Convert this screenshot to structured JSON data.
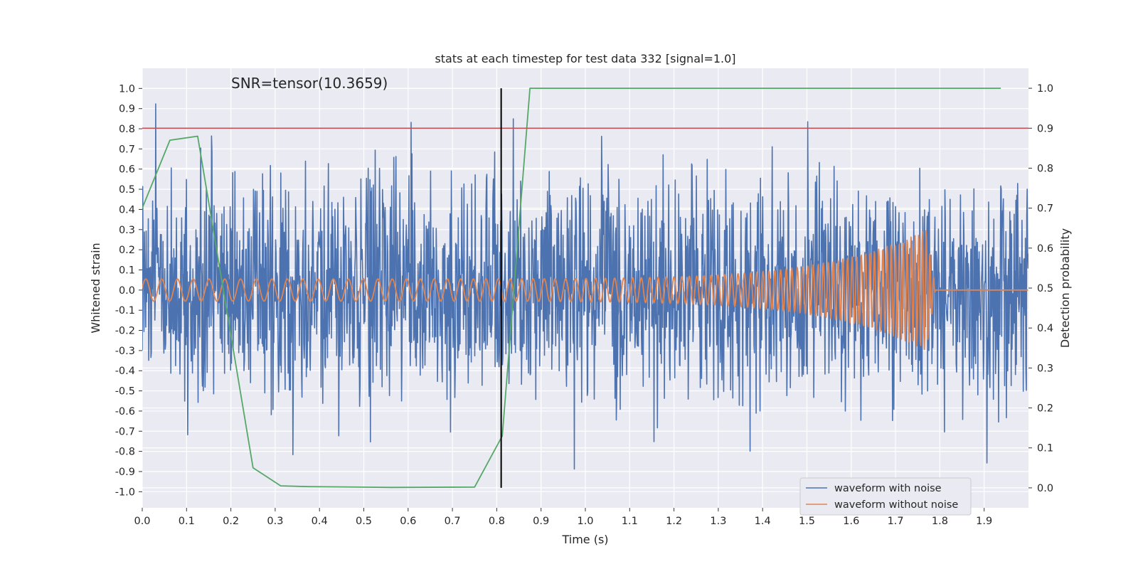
{
  "chart_data": {
    "type": "line",
    "title": "stats at each timestep for test data 332 [signal=1.0]",
    "annotation": "SNR=tensor(10.3659)",
    "xlabel": "Time (s)",
    "ylabel_left": "Whitened strain",
    "ylabel_right": "Detection probability",
    "xlim": [
      0.0,
      2.0
    ],
    "ylim_left": [
      -1.08,
      1.1
    ],
    "ylim_right": [
      -0.05,
      1.05
    ],
    "x_ticks": [
      "0.0",
      "0.1",
      "0.2",
      "0.3",
      "0.4",
      "0.5",
      "0.6",
      "0.7",
      "0.8",
      "0.9",
      "1.0",
      "1.1",
      "1.2",
      "1.3",
      "1.4",
      "1.5",
      "1.6",
      "1.7",
      "1.8",
      "1.9"
    ],
    "y_ticks_left": [
      "1.0",
      "0.9",
      "0.8",
      "0.7",
      "0.6",
      "0.5",
      "0.4",
      "0.3",
      "0.2",
      "0.1",
      "0.0",
      "-0.1",
      "-0.2",
      "-0.3",
      "-0.4",
      "-0.5",
      "-0.6",
      "-0.7",
      "-0.8",
      "-0.9",
      "-1.0"
    ],
    "y_ticks_right": [
      "1.0",
      "0.9",
      "0.8",
      "0.7",
      "0.6",
      "0.5",
      "0.4",
      "0.3",
      "0.2",
      "0.1",
      "0.0"
    ],
    "threshold": {
      "axis": "right",
      "value": 0.9,
      "color": "#c44e52"
    },
    "event_marker": {
      "x": 0.81,
      "y_range_right": [
        0.0,
        1.0
      ],
      "color": "#000000"
    },
    "legend": {
      "position": "lower-right",
      "entries": [
        {
          "label": "waveform with noise",
          "color": "#4c72b0"
        },
        {
          "label": "waveform without noise",
          "color": "#dd8452"
        }
      ]
    },
    "series": [
      {
        "name": "waveform with noise",
        "axis": "left",
        "color": "#4c72b0",
        "kind": "noise",
        "samples": 2048,
        "std": 0.27,
        "seed": 332
      },
      {
        "name": "waveform without noise",
        "axis": "left",
        "color": "#dd8452",
        "kind": "chirp",
        "samples": 2000,
        "amplitude_start": 0.055,
        "amplitude_peak": 0.3,
        "freq_start_hz": 28,
        "freq_end_hz": 120,
        "merger_time": 1.77,
        "ringdown_end": 1.79
      },
      {
        "name": "detection probability",
        "axis": "right",
        "color": "#55a868",
        "x": [
          0.0,
          0.0625,
          0.125,
          0.25,
          0.3125,
          0.375,
          0.5625,
          0.75,
          0.8125,
          0.875,
          1.9375
        ],
        "y": [
          0.7,
          0.87,
          0.88,
          0.05,
          0.005,
          0.003,
          0.001,
          0.002,
          0.13,
          1.0,
          1.0
        ]
      }
    ]
  }
}
